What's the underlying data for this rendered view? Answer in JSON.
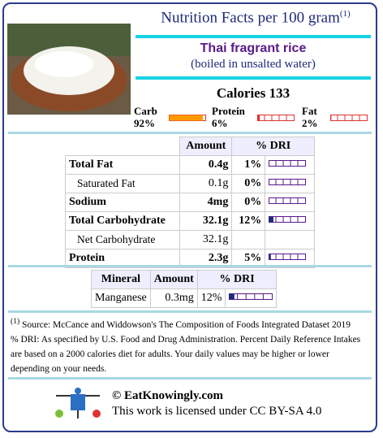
{
  "header": {
    "title": "Nutrition Facts per 100 gram",
    "title_note": "(1)"
  },
  "food": {
    "name": "Thai fragrant rice",
    "preparation": "(boiled in unsalted water)"
  },
  "calories": "Calories 133",
  "macros": [
    {
      "name": "Carb",
      "percent": "92%"
    },
    {
      "name": "Protein",
      "percent": "6%"
    },
    {
      "name": "Fat",
      "percent": "2%"
    }
  ],
  "nutrients": {
    "headers": [
      "Amount",
      "% DRI"
    ],
    "rows": [
      {
        "name": "Total Fat",
        "amount": "0.4g",
        "dri": "1%",
        "bold": true
      },
      {
        "name": "Saturated Fat",
        "amount": "0.1g",
        "dri": "0%",
        "bold": false
      },
      {
        "name": "Sodium",
        "amount": "4mg",
        "dri": "0%",
        "bold": true
      },
      {
        "name": "Total Carbohydrate",
        "amount": "32.1g",
        "dri": "12%",
        "bold": true
      },
      {
        "name": "Net Carbohydrate",
        "amount": "32.1g",
        "dri": null,
        "bold": false
      },
      {
        "name": "Protein",
        "amount": "2.3g",
        "dri": "5%",
        "bold": true
      }
    ]
  },
  "minerals": {
    "headers": [
      "Mineral",
      "Amount",
      "% DRI"
    ],
    "rows": [
      {
        "name": "Manganese",
        "amount": "0.3mg",
        "dri": "12%"
      }
    ]
  },
  "footnotes": {
    "source_note": "(1)",
    "source": " Source: McCance and Widdowson's The Composition of Foods Integrated Dataset 2019",
    "dri": "% DRI: As specified by U.S. Food and Drug Administration. Percent Daily Reference Intakes are based on a 2000 calories diet for adults. Your daily values may be higher or lower depending on your needs."
  },
  "footer": {
    "site": "© EatKnowingly.com",
    "license": "This work is licensed under CC BY-SA 4.0"
  }
}
